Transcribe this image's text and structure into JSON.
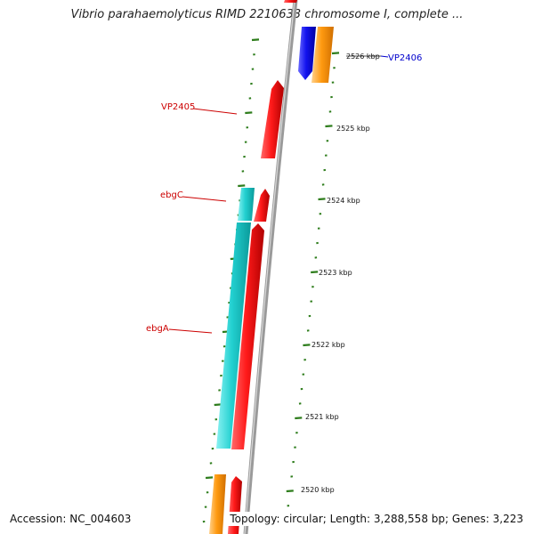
{
  "map": {
    "title": "Vibrio parahaemolyticus RIMD 2210633 chromosome I, complete ...",
    "accession": "Accession: NC_004603",
    "stats": "Topology: circular; Length: 3,288,558 bp; Genes: 3,223"
  },
  "ticks": [
    {
      "label": "2526 kbp",
      "strike": true
    },
    {
      "label": "2525 kbp",
      "strike": false
    },
    {
      "label": "2524 kbp",
      "strike": false
    },
    {
      "label": "2523 kbp",
      "strike": false
    },
    {
      "label": "2522 kbp",
      "strike": false
    },
    {
      "label": "2521 kbp",
      "strike": false
    },
    {
      "label": "2520 kbp",
      "strike": false
    }
  ],
  "genes": [
    {
      "name": "VP2406",
      "color": "#0000cc"
    },
    {
      "name": "VP2405",
      "color": "#cc0000"
    },
    {
      "name": "ebgC",
      "color": "#cc0000"
    },
    {
      "name": "ebgA",
      "color": "#cc0000"
    }
  ],
  "colors": {
    "forward_gene": "#ee1111",
    "reverse_gene_blue": "#1a1aee",
    "orange_gene": "#ff9900",
    "cyan_gene": "#22cccc",
    "backbone": "#9a9a9a",
    "dash": "#2e7d1c"
  }
}
